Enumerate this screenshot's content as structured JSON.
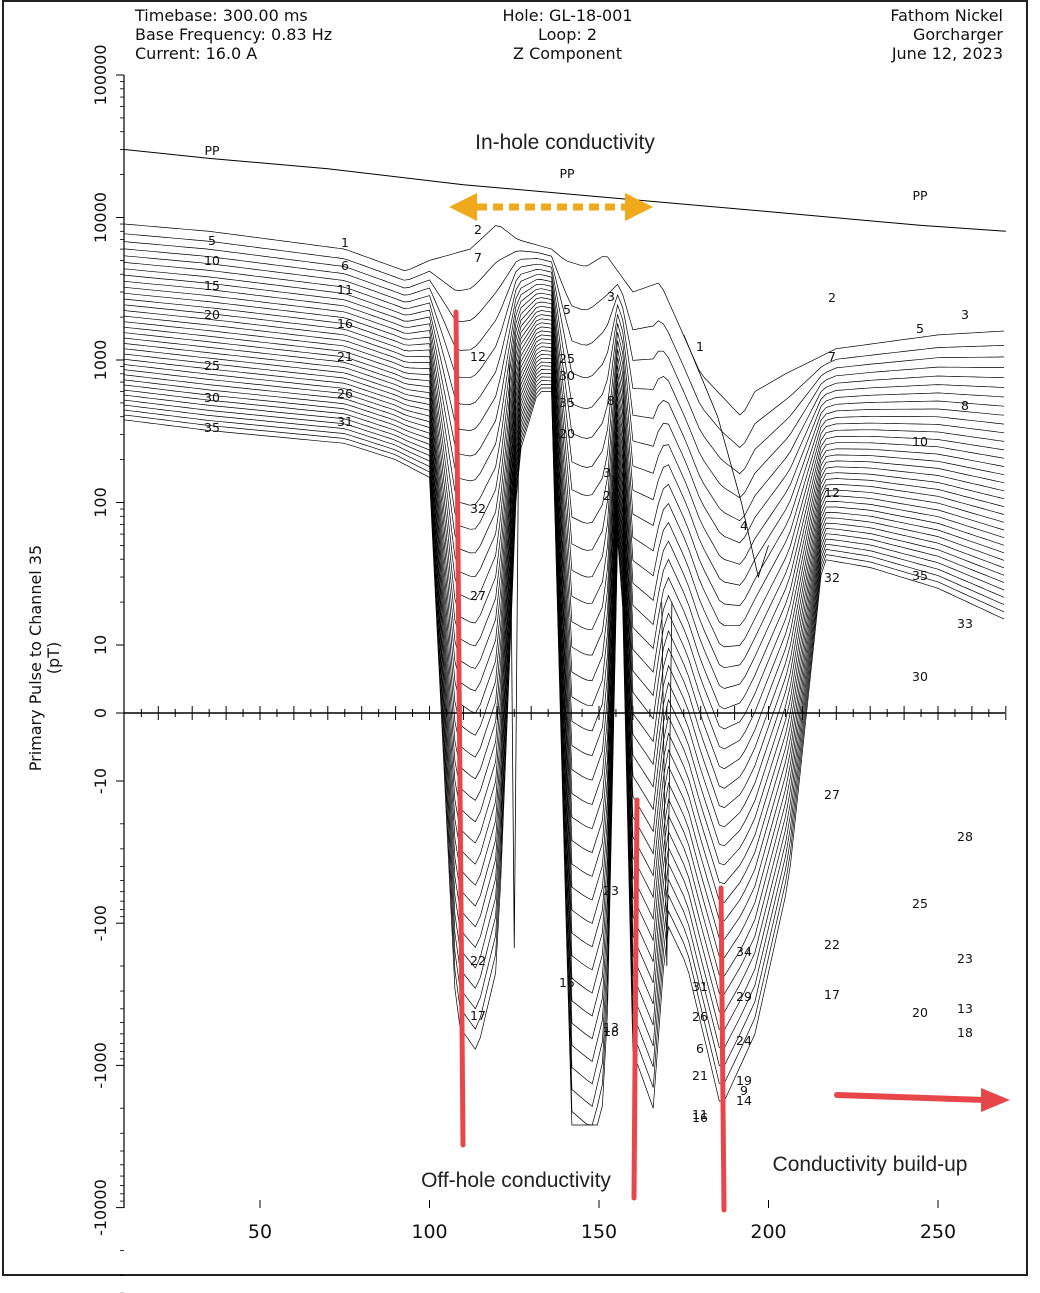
{
  "header": {
    "timebase": "Timebase: 300.00 ms",
    "base_frequency": "Base Frequency: 0.83 Hz",
    "current": "Current: 16.0 A",
    "hole": "Hole: GL-18-001",
    "loop": "Loop: 2",
    "component": "Z Component",
    "company": "Fathom Nickel",
    "project": "Gorcharger",
    "date": "June 12, 2023"
  },
  "annotations": {
    "in_hole": "In-hole conductivity",
    "off_hole": "Off-hole conductivity",
    "build_up": "Conductivity build-up"
  },
  "colors": {
    "line": "#000000",
    "annotation_red": "#e8474a",
    "annotation_orange": "#f0a81c"
  },
  "chart_data": {
    "type": "line",
    "title": "",
    "xlabel": "",
    "ylabel": "Primary Pulse to Channel 35\n(pT)",
    "xlim": [
      10,
      270
    ],
    "x_ticks": [
      50,
      100,
      150,
      200,
      250
    ],
    "y_scale": "symmetric-log",
    "y_ticks": [
      "100000",
      "10000",
      "1000",
      "100",
      "10",
      "0",
      "-10",
      "-100",
      "-1000",
      "-10000"
    ],
    "grid": false,
    "curve_labels": {
      "pp": [
        "PP",
        "PP",
        "PP"
      ],
      "left_col1": [
        "5",
        "10",
        "15",
        "20",
        "25",
        "30",
        "35"
      ],
      "left_col2": [
        "1",
        "6",
        "11",
        "16",
        "21",
        "26",
        "31"
      ],
      "center_top": [
        "2",
        "7",
        "12",
        "32",
        "27",
        "5",
        "3",
        "25",
        "30",
        "35",
        "8",
        "20",
        "1",
        "33",
        "28",
        "4"
      ],
      "right_top": [
        "2",
        "3",
        "5",
        "7",
        "8",
        "10",
        "12",
        "32",
        "35",
        "33",
        "30"
      ],
      "lower_center": [
        "22",
        "17",
        "15",
        "23",
        "18",
        "13"
      ],
      "lower_mid": [
        "34",
        "31",
        "29",
        "26",
        "24",
        "6",
        "21",
        "19",
        "9",
        "14",
        "16",
        "11"
      ],
      "lower_right": [
        "27",
        "28",
        "25",
        "22",
        "23",
        "17",
        "20",
        "13",
        "18"
      ]
    },
    "series": [
      {
        "name": "PP",
        "x": [
          10,
          35,
          70,
          110,
          150,
          200,
          245,
          270
        ],
        "y": [
          30000,
          26000,
          22000,
          17000,
          14000,
          11000,
          8800,
          8000
        ]
      },
      {
        "name": "1",
        "x": [
          10,
          35,
          75,
          93,
          100,
          112,
          120,
          126,
          136,
          140,
          146,
          152,
          160,
          168,
          180,
          192,
          196,
          205,
          220,
          250,
          270
        ],
        "y": [
          9000,
          8000,
          6000,
          4200,
          5000,
          6000,
          9000,
          7000,
          6000,
          5000,
          4500,
          5500,
          3000,
          3500,
          800,
          400,
          600,
          800,
          1200,
          1500,
          1600
        ]
      },
      {
        "name": "4",
        "x": [
          175,
          185,
          192,
          197,
          200
        ],
        "y": [
          1500,
          400,
          100,
          30,
          50
        ]
      },
      {
        "name": "35",
        "x": [
          10,
          35,
          75,
          90,
          100,
          108,
          114,
          120,
          126,
          132,
          136,
          142,
          148,
          152,
          156,
          160,
          166,
          170,
          176,
          186,
          196,
          206,
          216,
          230,
          250,
          270
        ],
        "y": [
          380,
          320,
          260,
          200,
          150,
          -500,
          -800,
          -200,
          200,
          600,
          600,
          -3000,
          -4000,
          -1500,
          200,
          -800,
          -2000,
          -100,
          -200,
          -2000,
          -600,
          -50,
          40,
          35,
          25,
          15
        ]
      },
      {
        "name": "22",
        "x": [
          10,
          50,
          95,
          110,
          120,
          135,
          150,
          170,
          190,
          215,
          250,
          270
        ],
        "y": [
          1500,
          1200,
          400,
          -200,
          -400,
          1000,
          -1000,
          -150,
          -300,
          -180,
          -250,
          -300
        ]
      }
    ]
  }
}
